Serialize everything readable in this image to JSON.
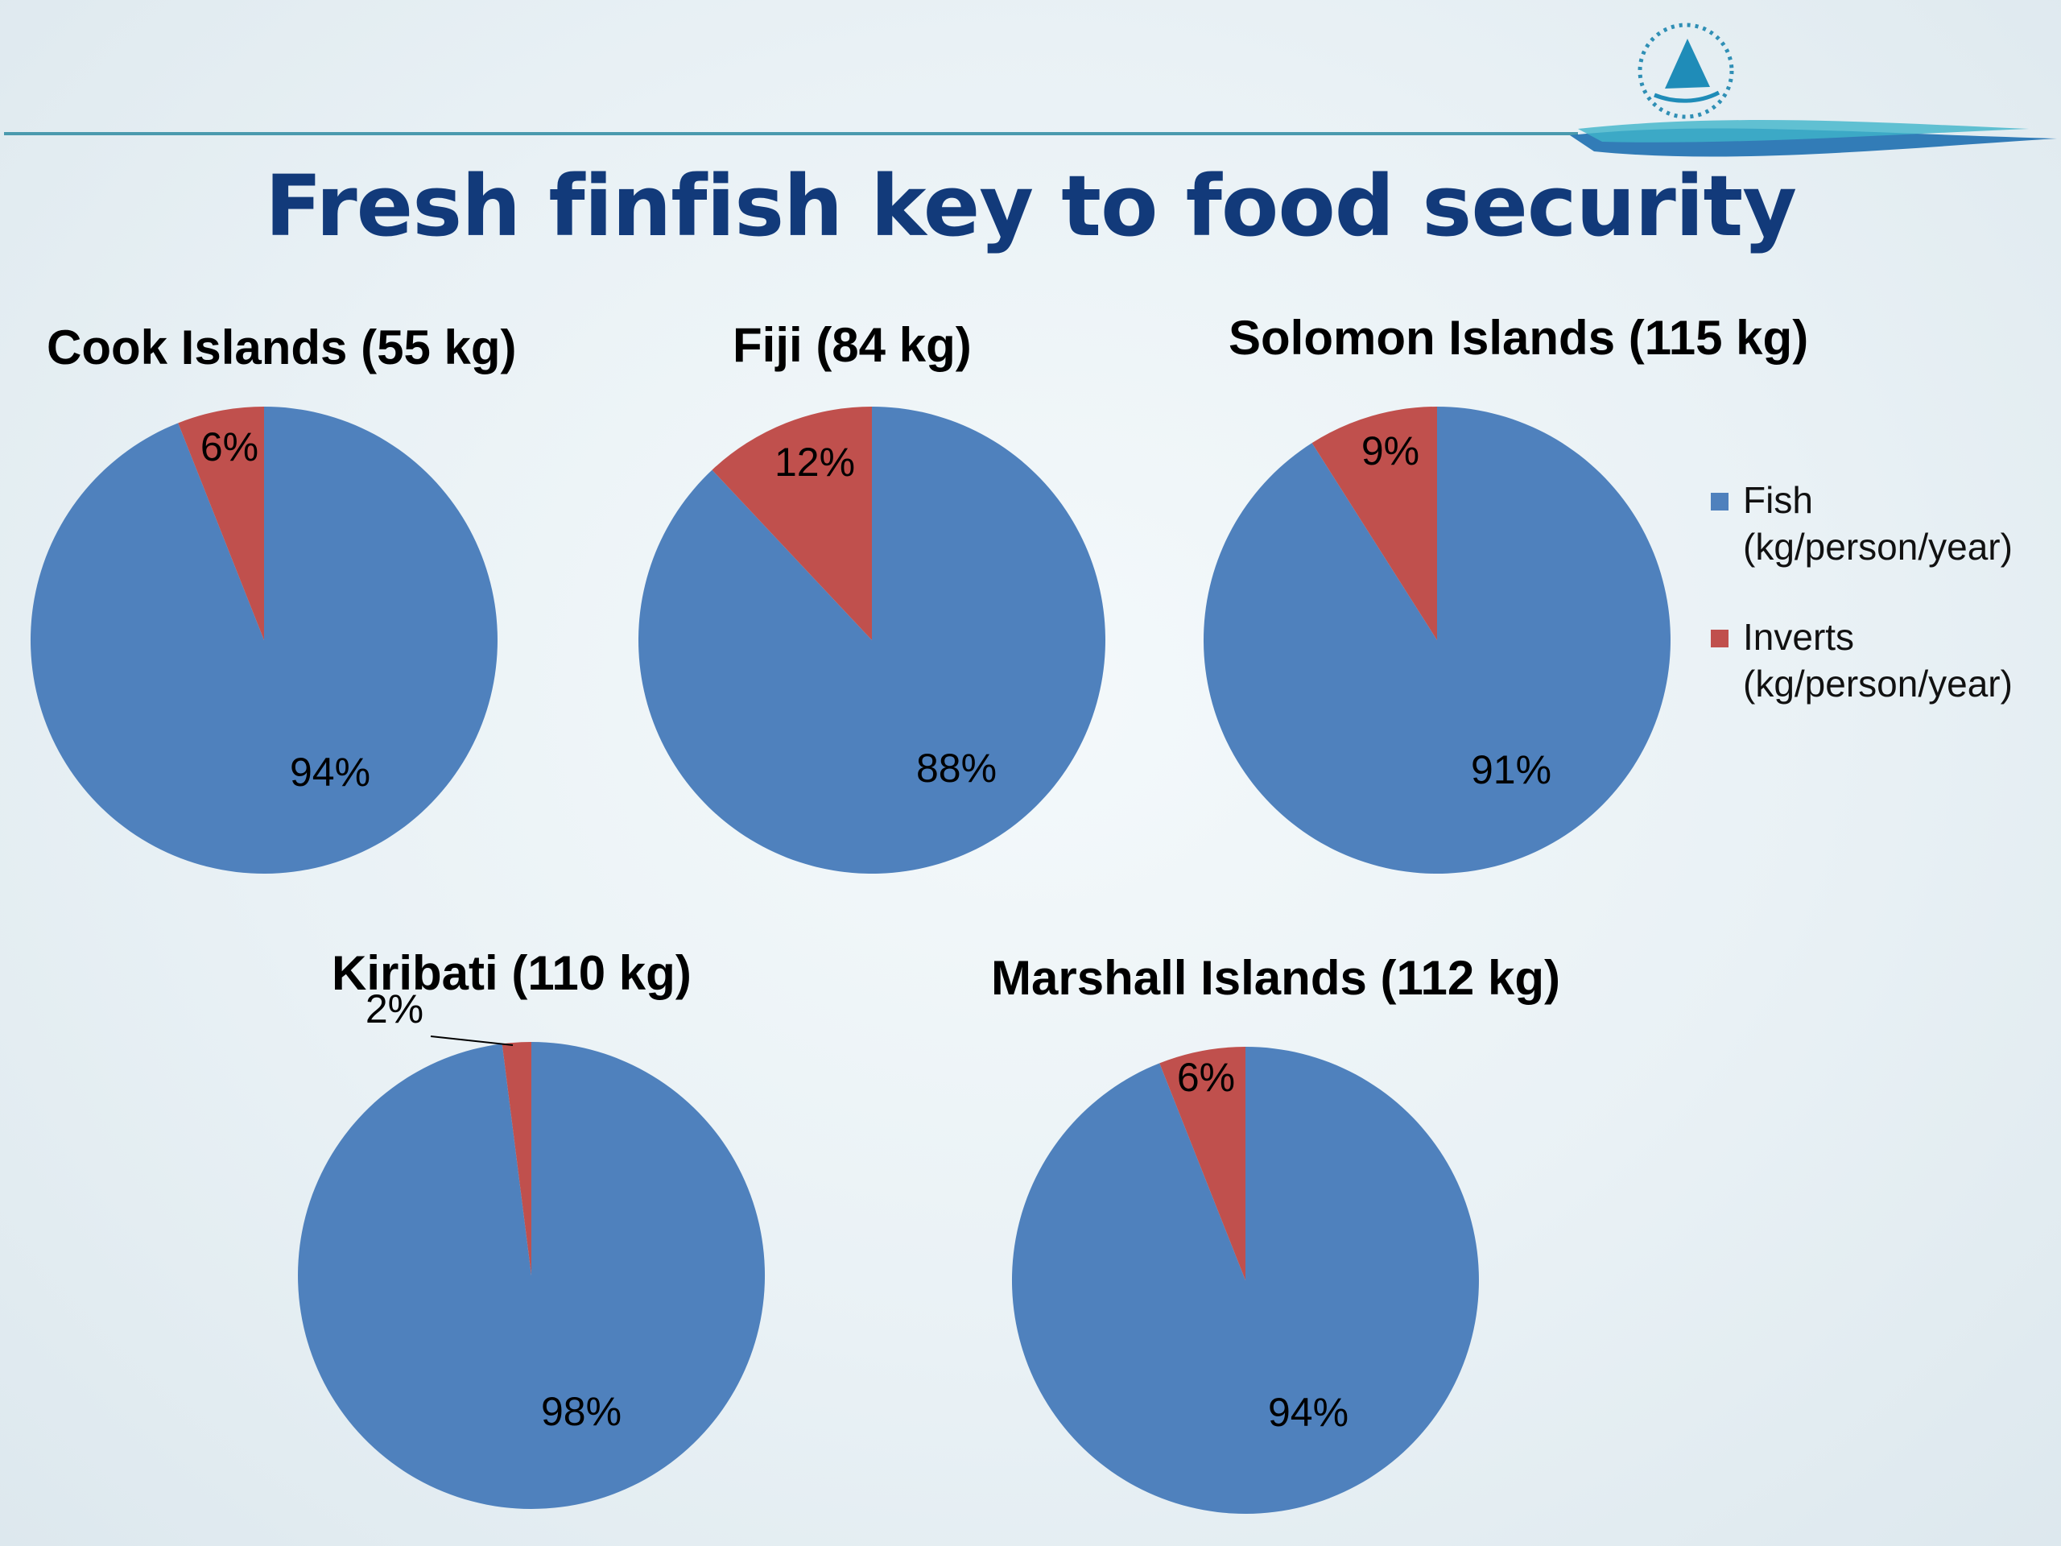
{
  "slide": {
    "title": "Fresh finfish key to food security"
  },
  "legend": {
    "items": [
      {
        "label": "Fish",
        "unit": "(kg/person/year)",
        "color": "#4f81bd"
      },
      {
        "label": "Inverts",
        "unit": "(kg/person/year)",
        "color": "#c0504d"
      }
    ]
  },
  "chart_data": [
    {
      "type": "pie",
      "title": "Cook Islands (55 kg)",
      "categories": [
        "Fish (kg/person/year)",
        "Inverts (kg/person/year)"
      ],
      "values": [
        94,
        6
      ],
      "labels": [
        "94%",
        "6%"
      ]
    },
    {
      "type": "pie",
      "title": "Fiji (84 kg)",
      "categories": [
        "Fish (kg/person/year)",
        "Inverts (kg/person/year)"
      ],
      "values": [
        88,
        12
      ],
      "labels": [
        "88%",
        "12%"
      ]
    },
    {
      "type": "pie",
      "title": "Solomon Islands (115 kg)",
      "categories": [
        "Fish (kg/person/year)",
        "Inverts (kg/person/year)"
      ],
      "values": [
        91,
        9
      ],
      "labels": [
        "91%",
        "9%"
      ]
    },
    {
      "type": "pie",
      "title": "Kiribati (110 kg)",
      "categories": [
        "Fish (kg/person/year)",
        "Inverts (kg/person/year)"
      ],
      "values": [
        98,
        2
      ],
      "labels": [
        "98%",
        "2%"
      ]
    },
    {
      "type": "pie",
      "title": "Marshall Islands (112 kg)",
      "categories": [
        "Fish (kg/person/year)",
        "Inverts (kg/person/year)"
      ],
      "values": [
        94,
        6
      ],
      "labels": [
        "94%",
        "6%"
      ]
    }
  ]
}
